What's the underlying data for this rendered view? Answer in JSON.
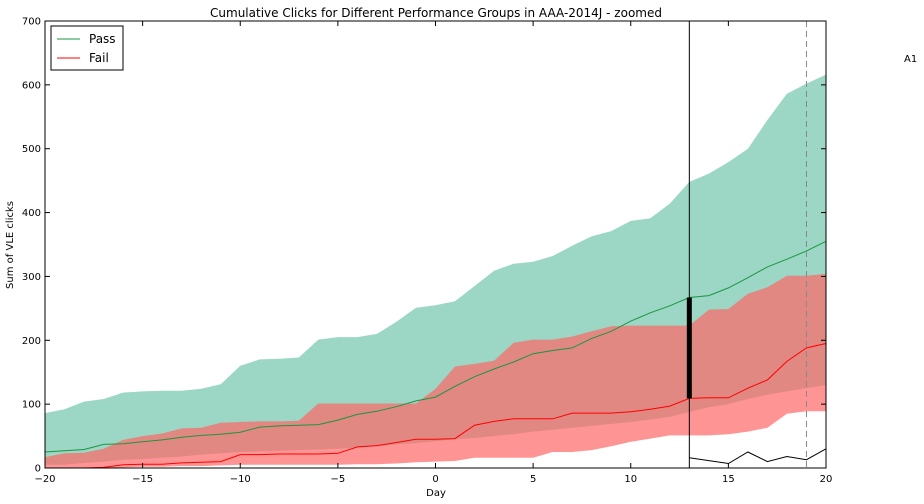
{
  "chart_data": {
    "type": "area",
    "title": "Cumulative Clicks for Different Performance Groups in AAA-2014J - zoomed",
    "xlabel": "Day",
    "ylabel": "Sum of VLE clicks",
    "xlim": [
      -20,
      20
    ],
    "ylim": [
      0,
      700
    ],
    "xticks": [
      -20,
      -15,
      -10,
      -5,
      0,
      5,
      10,
      15,
      20
    ],
    "yticks": [
      0,
      100,
      200,
      300,
      400,
      500,
      600,
      700
    ],
    "grid": false,
    "legend_position": "top-left",
    "side_label": "A1",
    "x": [
      -20,
      -19,
      -18,
      -17,
      -16,
      -15,
      -14,
      -13,
      -12,
      -11,
      -10,
      -9,
      -8,
      -7,
      -6,
      -5,
      -4,
      -3,
      -2,
      -1,
      0,
      1,
      2,
      3,
      4,
      5,
      6,
      7,
      8,
      9,
      10,
      11,
      12,
      13,
      14,
      15,
      16,
      17,
      18,
      19,
      20
    ],
    "series": [
      {
        "name": "Pass",
        "color": "#1a9641",
        "band_color": "#66c2a5",
        "median": [
          25,
          27,
          29,
          37,
          38,
          41,
          44,
          48,
          51,
          53,
          56,
          64,
          66,
          67,
          68,
          75,
          84,
          89,
          96,
          105,
          111,
          128,
          143,
          155,
          166,
          179,
          184,
          188,
          203,
          214,
          230,
          243,
          254,
          267,
          270,
          282,
          298,
          315,
          327,
          340,
          355
        ],
        "lower": [
          5,
          5,
          8,
          10,
          13,
          14,
          16,
          18,
          21,
          23,
          25,
          26,
          27,
          28,
          29,
          30,
          32,
          34,
          37,
          39,
          42,
          45,
          47,
          50,
          53,
          57,
          60,
          63,
          66,
          69,
          72,
          76,
          80,
          88,
          95,
          100,
          108,
          115,
          120,
          125,
          130
        ],
        "upper": [
          86,
          92,
          104,
          108,
          118,
          120,
          121,
          121,
          124,
          131,
          160,
          170,
          171,
          173,
          201,
          205,
          205,
          210,
          229,
          251,
          255,
          261,
          285,
          309,
          320,
          323,
          332,
          348,
          363,
          371,
          387,
          391,
          414,
          448,
          461,
          479,
          500,
          545,
          586,
          602,
          616
        ]
      },
      {
        "name": "Fail",
        "color": "#ff0000",
        "band_color": "#ff6666",
        "median": [
          0,
          0,
          0,
          1,
          5,
          6,
          6,
          8,
          9,
          10,
          21,
          21,
          22,
          22,
          22,
          23,
          33,
          35,
          40,
          45,
          45,
          46,
          67,
          73,
          77,
          77,
          77,
          86,
          86,
          86,
          88,
          92,
          97,
          109,
          110,
          110,
          125,
          138,
          167,
          188,
          195
        ],
        "lower": [
          0,
          0,
          0,
          0,
          1,
          2,
          2,
          3,
          3,
          4,
          5,
          5,
          5,
          5,
          5,
          5,
          6,
          6,
          7,
          9,
          10,
          11,
          16,
          16,
          16,
          16,
          25,
          25,
          28,
          34,
          41,
          46,
          51,
          51,
          51,
          53,
          57,
          63,
          85,
          89,
          89
        ],
        "upper": [
          17,
          23,
          24,
          30,
          44,
          50,
          54,
          62,
          63,
          71,
          72,
          73,
          73,
          74,
          101,
          101,
          101,
          101,
          101,
          101,
          124,
          159,
          163,
          168,
          196,
          201,
          201,
          206,
          214,
          222,
          223,
          223,
          223,
          223,
          248,
          249,
          273,
          283,
          301,
          301,
          304
        ]
      }
    ],
    "extra_line": {
      "color": "#000000",
      "x": [
        13,
        15,
        16,
        17,
        18,
        19,
        20
      ],
      "y": [
        16,
        7,
        25,
        10,
        18,
        13,
        30
      ]
    },
    "vertical_lines": [
      {
        "x": 13,
        "style": "solid",
        "color": "#000000"
      },
      {
        "x": 19,
        "style": "dashed",
        "color": "#888888"
      }
    ],
    "error_bar": {
      "x": 13,
      "ymin": 109,
      "ymax": 267,
      "color": "#000000"
    }
  }
}
